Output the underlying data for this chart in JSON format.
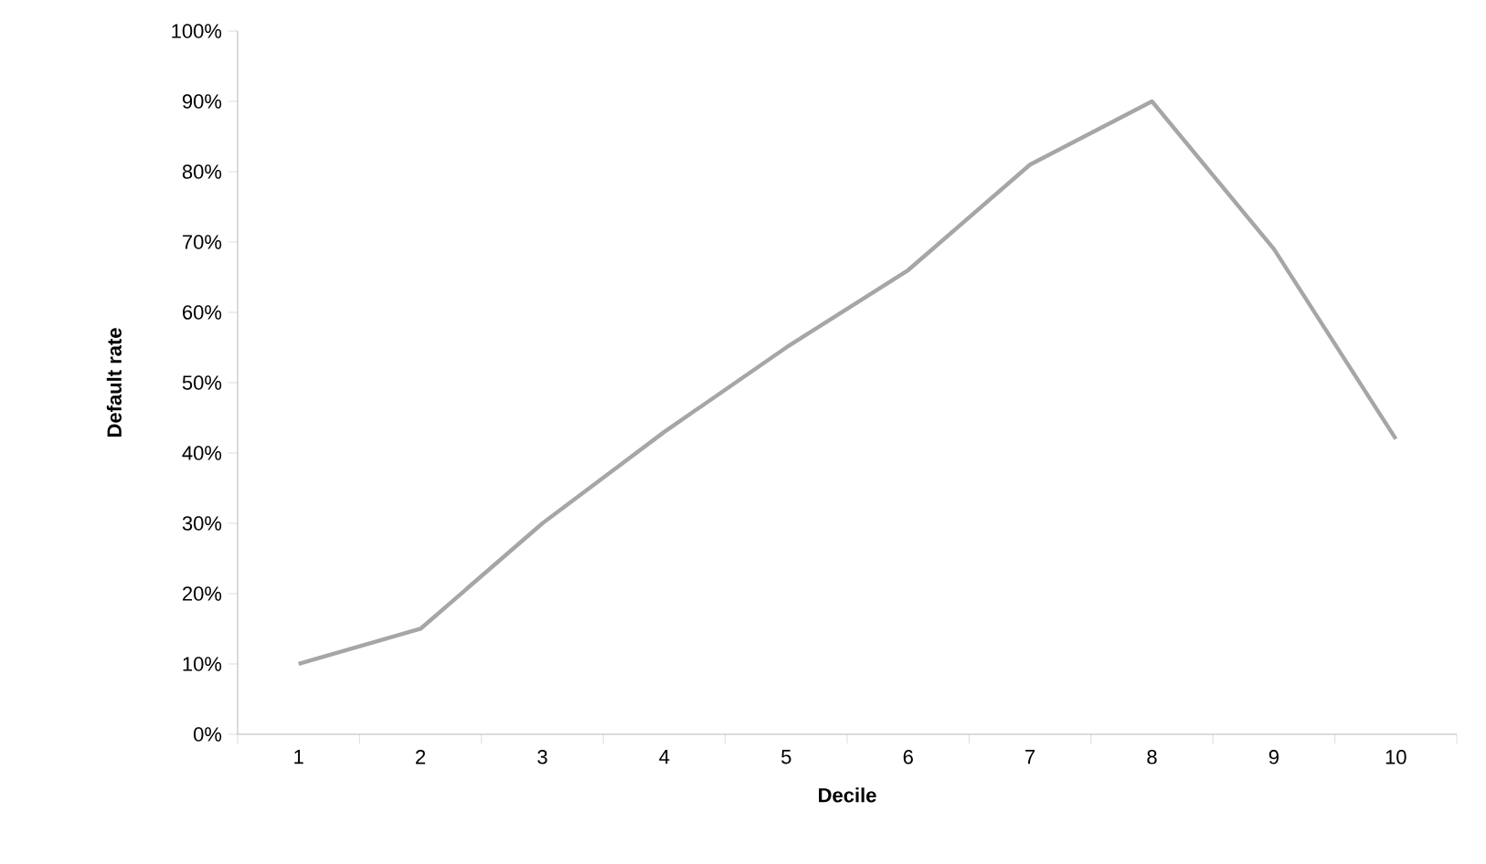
{
  "chart_data": {
    "type": "line",
    "xlabel": "Decile",
    "ylabel": "Default rate",
    "categories": [
      "1",
      "2",
      "3",
      "4",
      "5",
      "6",
      "7",
      "8",
      "9",
      "10"
    ],
    "series": [
      {
        "color": "#a6a6a6",
        "values": [
          10,
          15,
          30,
          43,
          55,
          66,
          81,
          90,
          69,
          42
        ]
      }
    ],
    "ylim": [
      0,
      100
    ],
    "yticks": [
      {
        "value": 0,
        "label": "0%"
      },
      {
        "value": 10,
        "label": "10%"
      },
      {
        "value": 20,
        "label": "20%"
      },
      {
        "value": 30,
        "label": "30%"
      },
      {
        "value": 40,
        "label": "40%"
      },
      {
        "value": 50,
        "label": "50%"
      },
      {
        "value": 60,
        "label": "60%"
      },
      {
        "value": 70,
        "label": "70%"
      },
      {
        "value": 80,
        "label": "80%"
      },
      {
        "value": 90,
        "label": "90%"
      },
      {
        "value": 100,
        "label": "100%"
      }
    ],
    "marker": "none",
    "line_style": "solid"
  }
}
